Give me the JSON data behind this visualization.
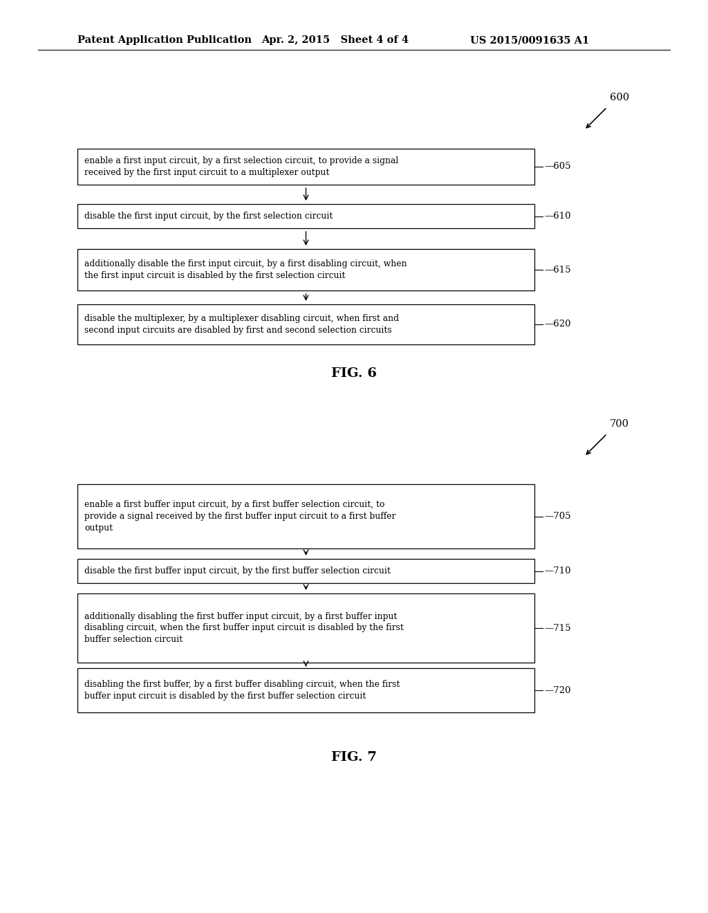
{
  "background_color": "#ffffff",
  "header_left": "Patent Application Publication",
  "header_center": "Apr. 2, 2015   Sheet 4 of 4",
  "header_right": "US 2015/0091635 A1",
  "header_fontsize": 10.5,
  "fig6": {
    "ref_label": "600",
    "figure_label": "FIG. 6",
    "boxes": [
      {
        "text": "enable a first input circuit, by a first selection circuit, to provide a signal\nreceived by the first input circuit to a multiplexer output",
        "label": "605",
        "lines": 2
      },
      {
        "text": "disable the first input circuit, by the first selection circuit",
        "label": "610",
        "lines": 1
      },
      {
        "text": "additionally disable the first input circuit, by a first disabling circuit, when\nthe first input circuit is disabled by the first selection circuit",
        "label": "615",
        "lines": 2
      },
      {
        "text": "disable the multiplexer, by a multiplexer disabling circuit, when first and\nsecond input circuits are disabled by first and second selection circuits",
        "label": "620",
        "lines": 2
      }
    ]
  },
  "fig7": {
    "ref_label": "700",
    "figure_label": "FIG. 7",
    "boxes": [
      {
        "text": "enable a first buffer input circuit, by a first buffer selection circuit, to\nprovide a signal received by the first buffer input circuit to a first buffer\noutput",
        "label": "705",
        "lines": 3
      },
      {
        "text": "disable the first buffer input circuit, by the first buffer selection circuit",
        "label": "710",
        "lines": 1
      },
      {
        "text": "additionally disabling the first buffer input circuit, by a first buffer input\ndisabling circuit, when the first buffer input circuit is disabled by the first\nbuffer selection circuit",
        "label": "715",
        "lines": 3
      },
      {
        "text": "disabling the first buffer, by a first buffer disabling circuit, when the first\nbuffer input circuit is disabled by the first buffer selection circuit",
        "label": "720",
        "lines": 2
      }
    ]
  }
}
